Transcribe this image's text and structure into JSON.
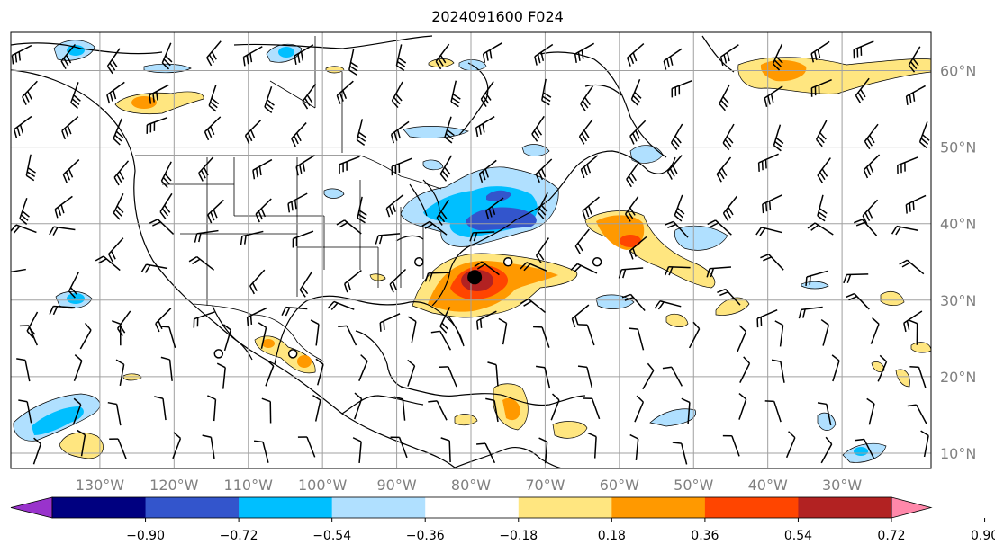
{
  "title": "2024091600 F024",
  "map": {
    "extent": {
      "lon": [
        -142,
        -18
      ],
      "lat": [
        8,
        65
      ]
    },
    "longitudes": [
      {
        "lon": -130,
        "label": "130°W"
      },
      {
        "lon": -120,
        "label": "120°W"
      },
      {
        "lon": -110,
        "label": "110°W"
      },
      {
        "lon": -100,
        "label": "100°W"
      },
      {
        "lon": -90,
        "label": "90°W"
      },
      {
        "lon": -80,
        "label": "80°W"
      },
      {
        "lon": -70,
        "label": "70°W"
      },
      {
        "lon": -60,
        "label": "60°W"
      },
      {
        "lon": -50,
        "label": "50°W"
      },
      {
        "lon": -40,
        "label": "40°W"
      },
      {
        "lon": -30,
        "label": "30°W"
      }
    ],
    "latitudes": [
      {
        "lat": 60,
        "label": "60°N"
      },
      {
        "lat": 50,
        "label": "50°N"
      },
      {
        "lat": 40,
        "label": "40°N"
      },
      {
        "lat": 30,
        "label": "30°N"
      },
      {
        "lat": 20,
        "label": "20°N"
      },
      {
        "lat": 10,
        "label": "10°N"
      }
    ],
    "gridlines": true,
    "label_color": "#808080"
  },
  "colorbar": {
    "colors": [
      "#9933cc",
      "#000080",
      "#3355cc",
      "#00bfff",
      "#b0e0ff",
      "#ffffff",
      "#ffe680",
      "#ff9900",
      "#ff4500",
      "#b22222",
      "#ff88aa"
    ],
    "ticks": [
      "−0.90",
      "−0.72",
      "−0.54",
      "−0.36",
      "−0.18",
      "0.18",
      "0.36",
      "0.54",
      "0.72",
      "0.90"
    ],
    "extend": "both"
  },
  "storm_center": {
    "lon": -79.5,
    "lat": 33
  },
  "open_circles": [
    {
      "lon": -87,
      "lat": 35
    },
    {
      "lon": -75,
      "lat": 35
    },
    {
      "lon": -63,
      "lat": 35
    },
    {
      "lon": -114,
      "lat": 23
    },
    {
      "lon": -104,
      "lat": 23
    }
  ]
}
